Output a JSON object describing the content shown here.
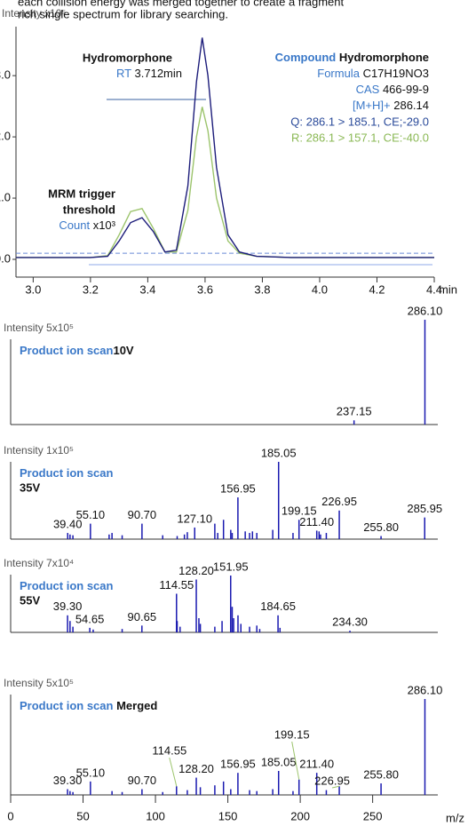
{
  "caption": [
    "each collision energy was merged together to create a fragment",
    "rich single spectrum for library searching."
  ],
  "chart_data": [
    {
      "type": "line",
      "y_label": "Intensity x10⁵",
      "x_unit": "min",
      "x": [
        2.94,
        3.0,
        3.1,
        3.2,
        3.26,
        3.3,
        3.34,
        3.38,
        3.42,
        3.46,
        3.5,
        3.54,
        3.57,
        3.59,
        3.61,
        3.64,
        3.68,
        3.72,
        3.78,
        3.9,
        4.0,
        4.2,
        4.4
      ],
      "series": [
        {
          "color": "#1c1c7a",
          "values": [
            0.03,
            0.03,
            0.03,
            0.03,
            0.05,
            0.3,
            0.6,
            0.68,
            0.45,
            0.12,
            0.15,
            1.2,
            2.9,
            3.62,
            3.0,
            1.5,
            0.4,
            0.12,
            0.05,
            0.03,
            0.03,
            0.03,
            0.03
          ]
        },
        {
          "color": "#9cc46c",
          "values": [
            0.03,
            0.03,
            0.03,
            0.03,
            0.06,
            0.4,
            0.78,
            0.83,
            0.5,
            0.12,
            0.12,
            0.8,
            2.0,
            2.49,
            2.1,
            1.0,
            0.3,
            0.1,
            0.05,
            0.03,
            0.03,
            0.03,
            0.03
          ]
        }
      ],
      "xlim": [
        2.94,
        4.4
      ],
      "xticks": [
        {
          "value": 3.0,
          "label": "3.0"
        },
        {
          "value": 3.2,
          "label": "3.2"
        },
        {
          "value": 3.4,
          "label": "3.4"
        },
        {
          "value": 3.6,
          "label": "3.6"
        },
        {
          "value": 3.8,
          "label": "3.8"
        },
        {
          "value": 4.0,
          "label": "4.0"
        },
        {
          "value": 4.2,
          "label": "4.2"
        },
        4.4
      ],
      "ylim": [
        -0.29,
        3.8
      ],
      "yticks": [
        {
          "value": 0,
          "label": "0.0"
        },
        {
          "value": 1,
          "label": "1.0"
        },
        {
          "value": 2,
          "label": "2.0"
        },
        {
          "value": 3,
          "label": "3.0"
        }
      ],
      "threshold": 0.1,
      "peak_name": "Hydromorphone",
      "rt_key": "RT",
      "rt_value": "3.712min",
      "compound": [
        {
          "key": "Compound",
          "value": "Hydromorphone"
        },
        {
          "key": "Formula",
          "value": "C17H19NO3"
        },
        {
          "key": "CAS",
          "value": "466-99-9"
        },
        {
          "key": "[M+H]+",
          "value": "286.14"
        }
      ],
      "q_line": "Q: 286.1 > 185.1, CE;-29.0",
      "r_line": "R: 286.1 > 157.1, CE:-40.0",
      "trigger": [
        "MRM trigger",
        "threshold"
      ],
      "count_key": "Count",
      "count_value": "x10³"
    },
    {
      "type": "stem",
      "intensity_label": "Intensity 5x10⁵",
      "scan_label": "Product ion scan",
      "energy": "10V",
      "color": "#1a1ab0",
      "x": [
        237.15,
        286.1
      ],
      "x_labels": [
        "237.15",
        "286.10"
      ],
      "values": [
        4,
        100
      ],
      "xlim": [
        0,
        295
      ],
      "ylim": [
        0,
        100
      ]
    },
    {
      "type": "stem",
      "intensity_label": "Intensity 1x10⁵",
      "scan_label": "Product ion scan",
      "energy": "35V",
      "color": "#1a1ab0",
      "x": [
        39.4,
        55.1,
        90.7,
        127.1,
        156.95,
        185.05,
        199.15,
        211.4,
        226.95,
        255.8,
        285.95,
        41,
        43,
        68,
        70,
        77,
        105,
        115,
        120,
        122,
        141,
        143,
        147,
        152,
        153,
        162,
        165,
        167,
        170,
        181,
        195,
        213,
        214,
        218
      ],
      "x_labels": [
        "39.40",
        "55.10",
        "90.70",
        "127.10",
        "156.95",
        "185.05",
        "199.15",
        "211.40",
        "226.95",
        "255.80",
        "285.95",
        null,
        null,
        null,
        null,
        null,
        null,
        null,
        null,
        null,
        null,
        null,
        null,
        null,
        null,
        null,
        null,
        null,
        null,
        null,
        null,
        null,
        null,
        null
      ],
      "values": [
        8,
        20,
        20,
        15,
        54,
        100,
        25,
        11,
        37,
        4,
        28,
        6,
        5,
        6,
        8,
        5,
        5,
        4,
        6,
        9,
        20,
        8,
        25,
        12,
        8,
        10,
        8,
        10,
        8,
        12,
        8,
        10,
        6,
        8
      ],
      "xlim": [
        0,
        295
      ],
      "ylim": [
        0,
        100
      ]
    },
    {
      "type": "stem",
      "intensity_label": "Intensity 7x10⁴",
      "scan_label": "Product ion scan",
      "energy": "55V",
      "color": "#1a1ab0",
      "x": [
        39.3,
        54.65,
        90.65,
        114.55,
        128.2,
        151.95,
        184.65,
        234.3,
        41,
        43,
        57,
        77,
        115,
        117,
        130,
        131,
        141,
        146,
        153,
        154,
        157,
        159,
        165,
        170,
        172,
        186
      ],
      "x_labels": [
        "39.30",
        "54.65",
        "90.65",
        "114.55",
        "128.20",
        "151.95",
        "184.65",
        "234.30",
        null,
        null,
        null,
        null,
        null,
        null,
        null,
        null,
        null,
        null,
        null,
        null,
        null,
        null,
        null,
        null,
        null,
        null
      ],
      "values": [
        30,
        8,
        12,
        68,
        93,
        100,
        30,
        3,
        20,
        10,
        5,
        6,
        20,
        10,
        25,
        15,
        10,
        20,
        45,
        25,
        30,
        15,
        10,
        12,
        6,
        8
      ],
      "xlim": [
        0,
        295
      ],
      "ylim": [
        0,
        100
      ]
    },
    {
      "type": "stem",
      "intensity_label": "Intensity 5x10⁵",
      "scan_label": "Product ion scan",
      "energy": "Merged",
      "color": "#1a1ab0",
      "x": [
        39.3,
        55.1,
        90.7,
        114.55,
        128.2,
        156.95,
        185.05,
        199.15,
        211.4,
        226.95,
        255.8,
        286.1,
        41,
        43,
        70,
        77,
        105,
        122,
        131,
        141,
        147,
        152,
        165,
        170,
        181,
        195,
        218
      ],
      "x_labels": [
        "39.30",
        "55.10",
        "90.70",
        "114.55",
        "128.20",
        "156.95",
        "185.05",
        "199.15",
        "211.40",
        "226.95",
        "255.80",
        "286.10",
        null,
        null,
        null,
        null,
        null,
        null,
        null,
        null,
        null,
        null,
        null,
        null,
        null,
        null,
        null
      ],
      "values": [
        6,
        14,
        6,
        9,
        18,
        23,
        25,
        16,
        23,
        9,
        12,
        100,
        4,
        3,
        4,
        3,
        3,
        5,
        8,
        10,
        14,
        6,
        5,
        4,
        6,
        4,
        5
      ],
      "xlim": [
        0,
        295
      ],
      "ylim": [
        0,
        100
      ],
      "xticks": [
        0,
        50,
        100,
        150,
        200,
        250
      ],
      "x_unit": "m/z"
    }
  ]
}
